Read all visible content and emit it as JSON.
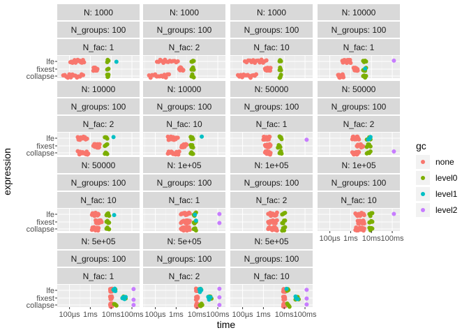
{
  "chart_data": {
    "type": "scatter",
    "xlabel": "time",
    "ylabel": "expression",
    "x_scale": "log10",
    "x_ticks": [
      {
        "label": "100µs",
        "value": 0.0001
      },
      {
        "label": "1ms",
        "value": 0.001
      },
      {
        "label": "10ms",
        "value": 0.01
      },
      {
        "label": "100ms",
        "value": 0.1
      }
    ],
    "y_categories": [
      "lfe",
      "fixest",
      "collapse"
    ],
    "legend": {
      "title": "gc",
      "position": "right",
      "entries": [
        {
          "name": "none",
          "color": "#F8766D"
        },
        {
          "name": "level0",
          "color": "#7CAE00"
        },
        {
          "name": "level1",
          "color": "#00BFC4"
        },
        {
          "name": "level2",
          "color": "#C77CFF"
        }
      ]
    },
    "panels": [
      {
        "strips": [
          "N: 1000",
          "N_groups: 100",
          "N_fac: 1"
        ],
        "series": {
          "lfe": {
            "none": [
              0.00011,
              0.0005
            ],
            "level0": [
              0.0065,
              0.0075
            ],
            "level1": [
              0.018
            ],
            "level2": []
          },
          "fixest": {
            "none": [
              0.0014,
              0.0022
            ],
            "level0": [
              0.0065,
              0.0075
            ],
            "level1": [],
            "level2": []
          },
          "collapse": {
            "none": [
              5e-05,
              0.00045
            ],
            "level0": [
              0.0065,
              0.0075
            ],
            "level1": [],
            "level2": []
          }
        }
      },
      {
        "strips": [
          "N: 1000",
          "N_groups: 100",
          "N_fac: 2"
        ],
        "series": {
          "lfe": {
            "none": [
              0.00012,
              0.0012
            ],
            "level0": [
              0.0055,
              0.007
            ],
            "level1": [],
            "level2": []
          },
          "fixest": {
            "none": [
              0.0014,
              0.0022
            ],
            "level0": [
              0.0055,
              0.007
            ],
            "level1": [],
            "level2": []
          },
          "collapse": {
            "none": [
              5e-05,
              0.00045
            ],
            "level0": [
              0.0055,
              0.007
            ],
            "level1": [],
            "level2": []
          }
        }
      },
      {
        "strips": [
          "N: 1000",
          "N_groups: 100",
          "N_fac: 10"
        ],
        "series": {
          "lfe": {
            "none": [
              0.00013,
              0.0014
            ],
            "level0": [
              0.006,
              0.007
            ],
            "level1": [],
            "level2": []
          },
          "fixest": {
            "none": [
              0.0012,
              0.0022
            ],
            "level0": [
              0.006,
              0.007
            ],
            "level1": [],
            "level2": []
          },
          "collapse": {
            "none": [
              6e-05,
              0.00045
            ],
            "level0": [
              0.006,
              0.007
            ],
            "level1": [],
            "level2": []
          }
        }
      },
      {
        "strips": [
          "N: 10000",
          "N_groups: 100",
          "N_fac: 1"
        ],
        "series": {
          "lfe": {
            "none": [
              0.0004,
              0.001
            ],
            "level0": [
              0.004,
              0.0055
            ],
            "level1": [],
            "level2": [
              0.12
            ]
          },
          "fixest": {
            "none": [
              0.0014,
              0.0022
            ],
            "level0": [
              0.004,
              0.0055
            ],
            "level1": [
              0.005
            ],
            "level2": []
          },
          "collapse": {
            "none": [
              0.00025,
              0.00045
            ],
            "level0": [
              0.004,
              0.0055
            ],
            "level1": [],
            "level2": []
          }
        }
      },
      {
        "strips": [
          "N: 10000",
          "N_groups: 100",
          "N_fac: 2"
        ],
        "series": {
          "lfe": {
            "none": [
              0.00025,
              0.0007
            ],
            "level0": [
              0.005,
              0.0065
            ],
            "level1": [
              0.013
            ],
            "level2": []
          },
          "fixest": {
            "none": [
              0.0014,
              0.0028
            ],
            "level0": [
              0.005,
              0.0065
            ],
            "level1": [],
            "level2": []
          },
          "collapse": {
            "none": [
              0.00025,
              0.0008
            ],
            "level0": [
              0.005,
              0.0065
            ],
            "level1": [],
            "level2": []
          }
        }
      },
      {
        "strips": [
          "N: 10000",
          "N_groups: 100",
          "N_fac: 10"
        ],
        "series": {
          "lfe": {
            "none": [
              0.0004,
              0.0012
            ],
            "level0": [
              0.005,
              0.0065
            ],
            "level1": [
              0.017
            ],
            "level2": []
          },
          "fixest": {
            "none": [
              0.0018,
              0.0032
            ],
            "level0": [
              0.005,
              0.0065
            ],
            "level1": [],
            "level2": []
          },
          "collapse": {
            "none": [
              0.0004,
              0.0014
            ],
            "level0": [
              0.005,
              0.0065
            ],
            "level1": [],
            "level2": []
          }
        }
      },
      {
        "strips": [
          "N: 50000",
          "N_groups: 100",
          "N_fac: 1"
        ],
        "series": {
          "lfe": {
            "none": [
              0.001,
              0.002
            ],
            "level0": [
              0.006,
              0.0075
            ],
            "level1": [],
            "level2": [
              0.12
            ]
          },
          "fixest": {
            "none": [
              0.0012,
              0.0022
            ],
            "level0": [
              0.005,
              0.0065
            ],
            "level1": [],
            "level2": []
          },
          "collapse": {
            "none": [
              0.0012,
              0.0022
            ],
            "level0": [
              0.006,
              0.0075
            ],
            "level1": [],
            "level2": []
          }
        }
      },
      {
        "strips": [
          "N: 50000",
          "N_groups: 100",
          "N_fac: 2"
        ],
        "series": {
          "lfe": {
            "none": [
              0.0012,
              0.0025
            ],
            "level0": [
              0.006,
              0.009
            ],
            "level1": [
              0.007,
              0.009
            ],
            "level2": []
          },
          "fixest": {
            "none": [
              0.002,
              0.004
            ],
            "level0": [
              0.006,
              0.009
            ],
            "level1": [],
            "level2": []
          },
          "collapse": {
            "none": [
              0.0012,
              0.0025
            ],
            "level0": [
              0.006,
              0.009
            ],
            "level1": [],
            "level2": [
              0.12
            ]
          }
        }
      },
      {
        "strips": [
          "N: 50000",
          "N_groups: 100",
          "N_fac: 10"
        ],
        "series": {
          "lfe": {
            "none": [
              0.0012,
              0.0025
            ],
            "level0": [
              0.006,
              0.008
            ],
            "level1": [
              0.014
            ],
            "level2": []
          },
          "fixest": {
            "none": [
              0.0018,
              0.0035
            ],
            "level0": [
              0.006,
              0.008
            ],
            "level1": [],
            "level2": []
          },
          "collapse": {
            "none": [
              0.0012,
              0.0025
            ],
            "level0": [
              0.006,
              0.008
            ],
            "level1": [],
            "level2": []
          }
        }
      },
      {
        "strips": [
          "N: 1e+05",
          "N_groups: 100",
          "N_fac: 1"
        ],
        "series": {
          "lfe": {
            "none": [
              0.0017,
              0.0045
            ],
            "level0": [
              0.007,
              0.009
            ],
            "level1": [
              0.008
            ],
            "level2": [
              0.12
            ]
          },
          "fixest": {
            "none": [
              0.0017,
              0.0045
            ],
            "level0": [
              0.007,
              0.009
            ],
            "level1": [
              0.009
            ],
            "level2": [
              0.12
            ]
          },
          "collapse": {
            "none": [
              0.0017,
              0.0045
            ],
            "level0": [
              0.007,
              0.009
            ],
            "level1": [],
            "level2": []
          }
        }
      },
      {
        "strips": [
          "N: 1e+05",
          "N_groups: 100",
          "N_fac: 2"
        ],
        "series": {
          "lfe": {
            "none": [
              0.0017,
              0.0045
            ],
            "level0": [
              0.008,
              0.011
            ],
            "level1": [],
            "level2": []
          },
          "fixest": {
            "none": [
              0.0017,
              0.0045
            ],
            "level0": [
              0.008,
              0.011
            ],
            "level1": [],
            "level2": []
          },
          "collapse": {
            "none": [
              0.0017,
              0.0045
            ],
            "level0": [
              0.008,
              0.011
            ],
            "level1": [],
            "level2": []
          }
        }
      },
      {
        "strips": [
          "N: 1e+05",
          "N_groups: 100",
          "N_fac: 10"
        ],
        "series": {
          "lfe": {
            "none": [
              0.0017,
              0.0045
            ],
            "level0": [
              0.008,
              0.011
            ],
            "level1": [],
            "level2": [
              0.12
            ]
          },
          "fixest": {
            "none": [
              0.0022,
              0.0045
            ],
            "level0": [
              0.008,
              0.011
            ],
            "level1": [],
            "level2": []
          },
          "collapse": {
            "none": [
              0.0017,
              0.0045
            ],
            "level0": [
              0.008,
              0.011
            ],
            "level1": [],
            "level2": []
          }
        }
      },
      {
        "strips": [
          "N: 5e+05",
          "N_groups: 100",
          "N_fac: 1"
        ],
        "series": {
          "lfe": {
            "none": [
              0.009,
              0.011
            ],
            "level0": [
              0.013,
              0.016
            ],
            "level1": [
              0.013,
              0.016
            ],
            "level2": [
              0.12
            ]
          },
          "fixest": {
            "none": [
              0.009,
              0.011
            ],
            "level0": [
              0.035,
              0.05
            ],
            "level1": [
              0.035,
              0.05
            ],
            "level2": [
              0.12
            ]
          },
          "collapse": {
            "none": [
              0.009,
              0.011
            ],
            "level0": [
              0.014,
              0.018
            ],
            "level1": [],
            "level2": [
              0.12
            ]
          }
        }
      },
      {
        "strips": [
          "N: 5e+05",
          "N_groups: 100",
          "N_fac: 2"
        ],
        "series": {
          "lfe": {
            "none": [
              0.009,
              0.011
            ],
            "level0": [
              0.014,
              0.016
            ],
            "level1": [
              0.013,
              0.016
            ],
            "level2": [
              0.12
            ]
          },
          "fixest": {
            "none": [
              0.009,
              0.011
            ],
            "level0": [
              0.035,
              0.05
            ],
            "level1": [
              0.035,
              0.045
            ],
            "level2": [
              0.12
            ]
          },
          "collapse": {
            "none": [
              0.009,
              0.011
            ],
            "level0": [
              0.014,
              0.018
            ],
            "level1": [],
            "level2": [
              0.12
            ]
          }
        }
      },
      {
        "strips": [
          "N: 5e+05",
          "N_groups: 100",
          "N_fac: 10"
        ],
        "series": {
          "lfe": {
            "none": [
              0.009,
              0.011
            ],
            "level0": [
              0.013,
              0.016
            ],
            "level1": [
              0.013
            ],
            "level2": [
              0.12
            ]
          },
          "fixest": {
            "none": [
              0.009,
              0.011
            ],
            "level0": [
              0.035,
              0.05
            ],
            "level1": [
              0.035,
              0.045
            ],
            "level2": [
              0.12
            ]
          },
          "collapse": {
            "none": [
              0.009,
              0.011
            ],
            "level0": [
              0.014,
              0.018
            ],
            "level1": [],
            "level2": [
              0.12
            ]
          }
        }
      }
    ]
  }
}
